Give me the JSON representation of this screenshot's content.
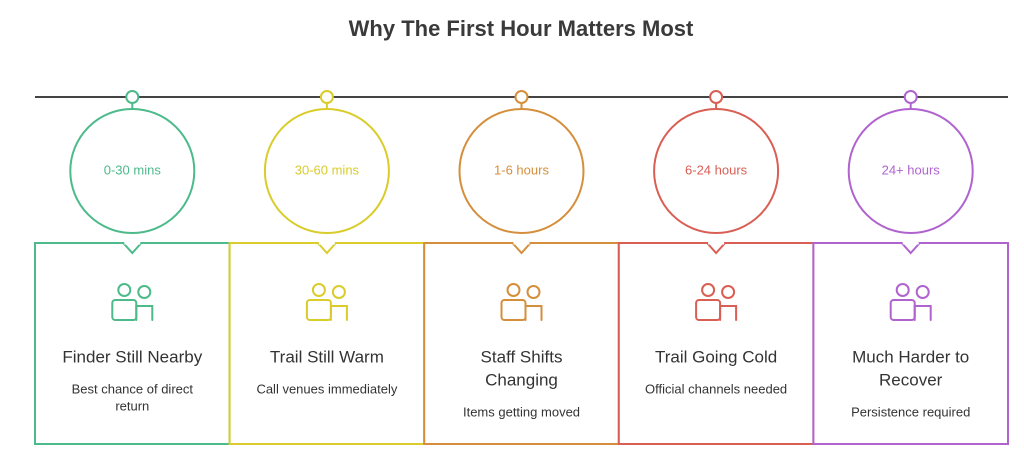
{
  "title": "Why The First Hour Matters Most",
  "stages": [
    {
      "time": "0-30 mins",
      "heading": [
        "Finder Still Nearby"
      ],
      "description": [
        "Best chance of direct",
        "return"
      ],
      "color": "#4cba8a"
    },
    {
      "time": "30-60 mins",
      "heading": [
        "Trail Still Warm"
      ],
      "description": [
        "Call venues immediately"
      ],
      "color": "#d9cc2b"
    },
    {
      "time": "1-6 hours",
      "heading": [
        "Staff Shifts",
        "Changing"
      ],
      "description": [
        "Items getting moved"
      ],
      "color": "#d58f3c"
    },
    {
      "time": "6-24 hours",
      "heading": [
        "Trail Going Cold"
      ],
      "description": [
        "Official channels needed"
      ],
      "color": "#d95f55"
    },
    {
      "time": "24+ hours",
      "heading": [
        "Much Harder to",
        "Recover"
      ],
      "description": [
        "Persistence required"
      ],
      "color": "#b063cf"
    }
  ]
}
